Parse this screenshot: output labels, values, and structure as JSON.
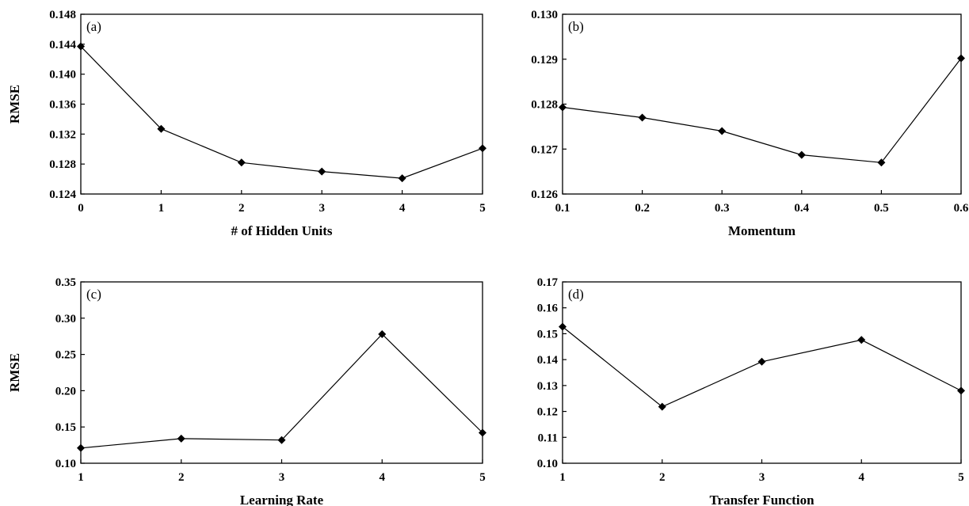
{
  "chart_data": [
    {
      "type": "line",
      "panel_label": "(a)",
      "xlabel": "# of Hidden Units",
      "ylabel": "RMSE",
      "x_ticks": [
        "0",
        "1",
        "2",
        "3",
        "4",
        "5"
      ],
      "y_ticks": [
        "0.124",
        "0.128",
        "0.132",
        "0.136",
        "0.140",
        "0.144",
        "0.148"
      ],
      "xlim": [
        0,
        5
      ],
      "ylim": [
        0.124,
        0.148
      ],
      "x": [
        0,
        1,
        2,
        3,
        4,
        5
      ],
      "y": [
        0.1437,
        0.1327,
        0.1282,
        0.127,
        0.1261,
        0.1301
      ],
      "marker": "diamond",
      "grid": false
    },
    {
      "type": "line",
      "panel_label": "(b)",
      "xlabel": "Momentum",
      "ylabel": "",
      "x_ticks": [
        "0.1",
        "0.2",
        "0.3",
        "0.4",
        "0.5",
        "0.6"
      ],
      "y_ticks": [
        "0.126",
        "0.127",
        "0.128",
        "0.129",
        "0.130"
      ],
      "xlim": [
        0.1,
        0.6
      ],
      "ylim": [
        0.126,
        0.13
      ],
      "x": [
        0.1,
        0.2,
        0.3,
        0.4,
        0.5,
        0.6
      ],
      "y": [
        0.12793,
        0.1277,
        0.1274,
        0.12687,
        0.1267,
        0.12902
      ],
      "marker": "diamond",
      "grid": false
    },
    {
      "type": "line",
      "panel_label": "(c)",
      "xlabel": "Learning Rate",
      "ylabel": "RMSE",
      "x_ticks": [
        "1",
        "2",
        "3",
        "4",
        "5"
      ],
      "y_ticks": [
        "0.10",
        "0.15",
        "0.20",
        "0.25",
        "0.30",
        "0.35"
      ],
      "xlim": [
        1,
        5
      ],
      "ylim": [
        0.1,
        0.35
      ],
      "x": [
        1,
        2,
        3,
        4,
        5
      ],
      "y": [
        0.121,
        0.134,
        0.132,
        0.278,
        0.142
      ],
      "marker": "diamond",
      "grid": false
    },
    {
      "type": "line",
      "panel_label": "(d)",
      "xlabel": "Transfer Function",
      "ylabel": "",
      "x_ticks": [
        "1",
        "2",
        "3",
        "4",
        "5"
      ],
      "y_ticks": [
        "0.10",
        "0.11",
        "0.12",
        "0.13",
        "0.14",
        "0.15",
        "0.16",
        "0.17"
      ],
      "xlim": [
        1,
        5
      ],
      "ylim": [
        0.1,
        0.17
      ],
      "x": [
        1,
        2,
        3,
        4,
        5
      ],
      "y": [
        0.1527,
        0.1218,
        0.1392,
        0.1476,
        0.128
      ],
      "marker": "diamond",
      "grid": false
    }
  ]
}
